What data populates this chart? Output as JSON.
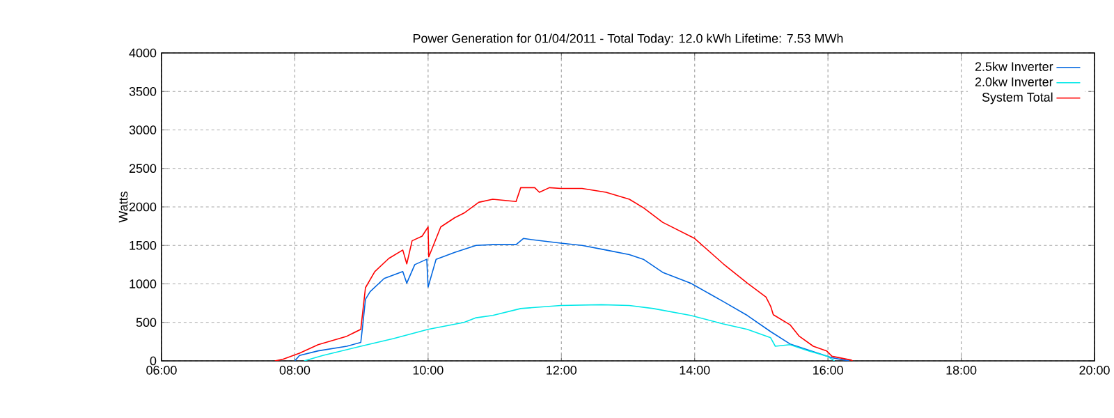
{
  "chart_data": {
    "type": "line",
    "title": "Power Generation for 01/04/2011 - Total Today: 12.0 kWh   Lifetime: 7.53 MWh",
    "ylabel": "Watts",
    "xlim": [
      6,
      20
    ],
    "ylim": [
      0,
      4000
    ],
    "xticks": [
      {
        "value": 6,
        "label": "06:00"
      },
      {
        "value": 8,
        "label": "08:00"
      },
      {
        "value": 10,
        "label": "10:00"
      },
      {
        "value": 12,
        "label": "12:00"
      },
      {
        "value": 14,
        "label": "14:00"
      },
      {
        "value": 16,
        "label": "16:00"
      },
      {
        "value": 18,
        "label": "18:00"
      },
      {
        "value": 20,
        "label": "20:00"
      }
    ],
    "yticks": [
      0,
      500,
      1000,
      1500,
      2000,
      2500,
      3000,
      3500,
      4000
    ],
    "grid": true,
    "legend": "top right",
    "marker": "none",
    "line_style": "solid",
    "series": [
      {
        "name": "2.5kw Inverter",
        "color": "#0066e0",
        "x": [
          8.0,
          8.07,
          8.35,
          8.78,
          8.99,
          9.02,
          9.06,
          9.13,
          9.34,
          9.62,
          9.68,
          9.8,
          9.98,
          10.0,
          10.12,
          10.4,
          10.72,
          10.97,
          11.32,
          11.43,
          11.6,
          11.99,
          12.31,
          12.67,
          13.02,
          13.23,
          13.52,
          13.94,
          14.0,
          14.43,
          14.79,
          15.14,
          15.43,
          15.78,
          16.06,
          16.25,
          16.32
        ],
        "values": [
          0,
          70,
          130,
          190,
          240,
          470,
          800,
          900,
          1070,
          1160,
          1010,
          1250,
          1320,
          960,
          1320,
          1410,
          1500,
          1510,
          1510,
          1590,
          1570,
          1530,
          1500,
          1440,
          1380,
          1320,
          1150,
          1010,
          980,
          770,
          590,
          380,
          220,
          120,
          40,
          10,
          0
        ]
      },
      {
        "name": "2.0kw Inverter",
        "color": "#00e8e8",
        "x": [
          8.14,
          8.42,
          8.99,
          9.48,
          10.0,
          10.54,
          10.72,
          10.97,
          11.39,
          11.99,
          12.6,
          13.02,
          13.38,
          13.94,
          14.43,
          14.79,
          15.14,
          15.21,
          15.43,
          15.71,
          15.99,
          16.1
        ],
        "values": [
          0,
          70,
          190,
          290,
          410,
          500,
          560,
          590,
          680,
          720,
          730,
          720,
          680,
          590,
          480,
          410,
          300,
          190,
          210,
          130,
          60,
          0
        ]
      },
      {
        "name": "System Total",
        "color": "#ff0000",
        "x": [
          7.7,
          7.82,
          8.07,
          8.35,
          8.78,
          8.99,
          9.06,
          9.2,
          9.41,
          9.62,
          9.68,
          9.76,
          9.91,
          10.0,
          10.01,
          10.19,
          10.4,
          10.54,
          10.76,
          10.97,
          11.32,
          11.39,
          11.6,
          11.67,
          11.82,
          11.99,
          12.31,
          12.67,
          13.02,
          13.23,
          13.52,
          14.0,
          14.43,
          14.79,
          15.07,
          15.14,
          15.18,
          15.43,
          15.57,
          15.78,
          15.98,
          16.06,
          16.35,
          16.37
        ],
        "values": [
          0,
          20,
          100,
          210,
          320,
          410,
          950,
          1160,
          1330,
          1440,
          1260,
          1560,
          1620,
          1740,
          1350,
          1740,
          1860,
          1920,
          2060,
          2100,
          2070,
          2250,
          2250,
          2190,
          2250,
          2240,
          2240,
          2190,
          2100,
          1990,
          1800,
          1590,
          1260,
          1010,
          830,
          710,
          600,
          470,
          320,
          190,
          130,
          60,
          10,
          0
        ]
      }
    ]
  }
}
